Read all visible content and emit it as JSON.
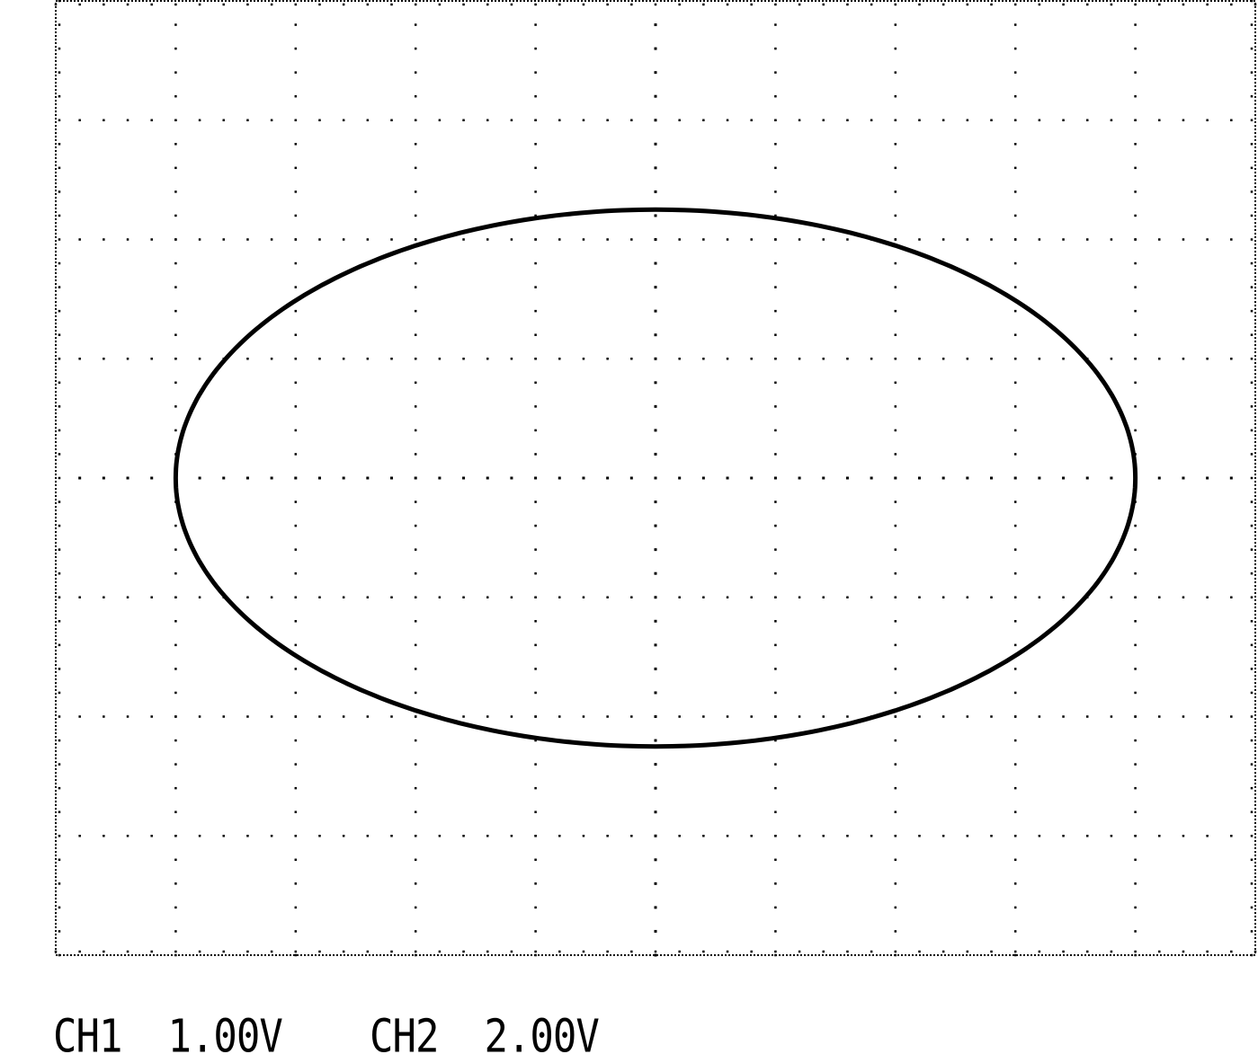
{
  "chart_data": {
    "type": "xy-trace",
    "display_mode": "XY",
    "grid": {
      "major_divisions_x": 10,
      "major_divisions_y": 8,
      "minor_ticks_per_division": 5,
      "style": "dotted"
    },
    "axes": {
      "x_range_div": [
        -5,
        5
      ],
      "y_range_div": [
        -4,
        4
      ]
    },
    "trace": {
      "shape": "ellipse",
      "center_div": [
        0,
        0
      ],
      "semi_axis_x_div": 4.0,
      "semi_axis_y_div": 2.25
    },
    "channels": [
      {
        "name": "CH1",
        "scale": "1.00V"
      },
      {
        "name": "CH2",
        "scale": "2.00V"
      }
    ],
    "colors": {
      "trace": "#000000",
      "grid": "#000000",
      "background": "#ffffff"
    }
  }
}
